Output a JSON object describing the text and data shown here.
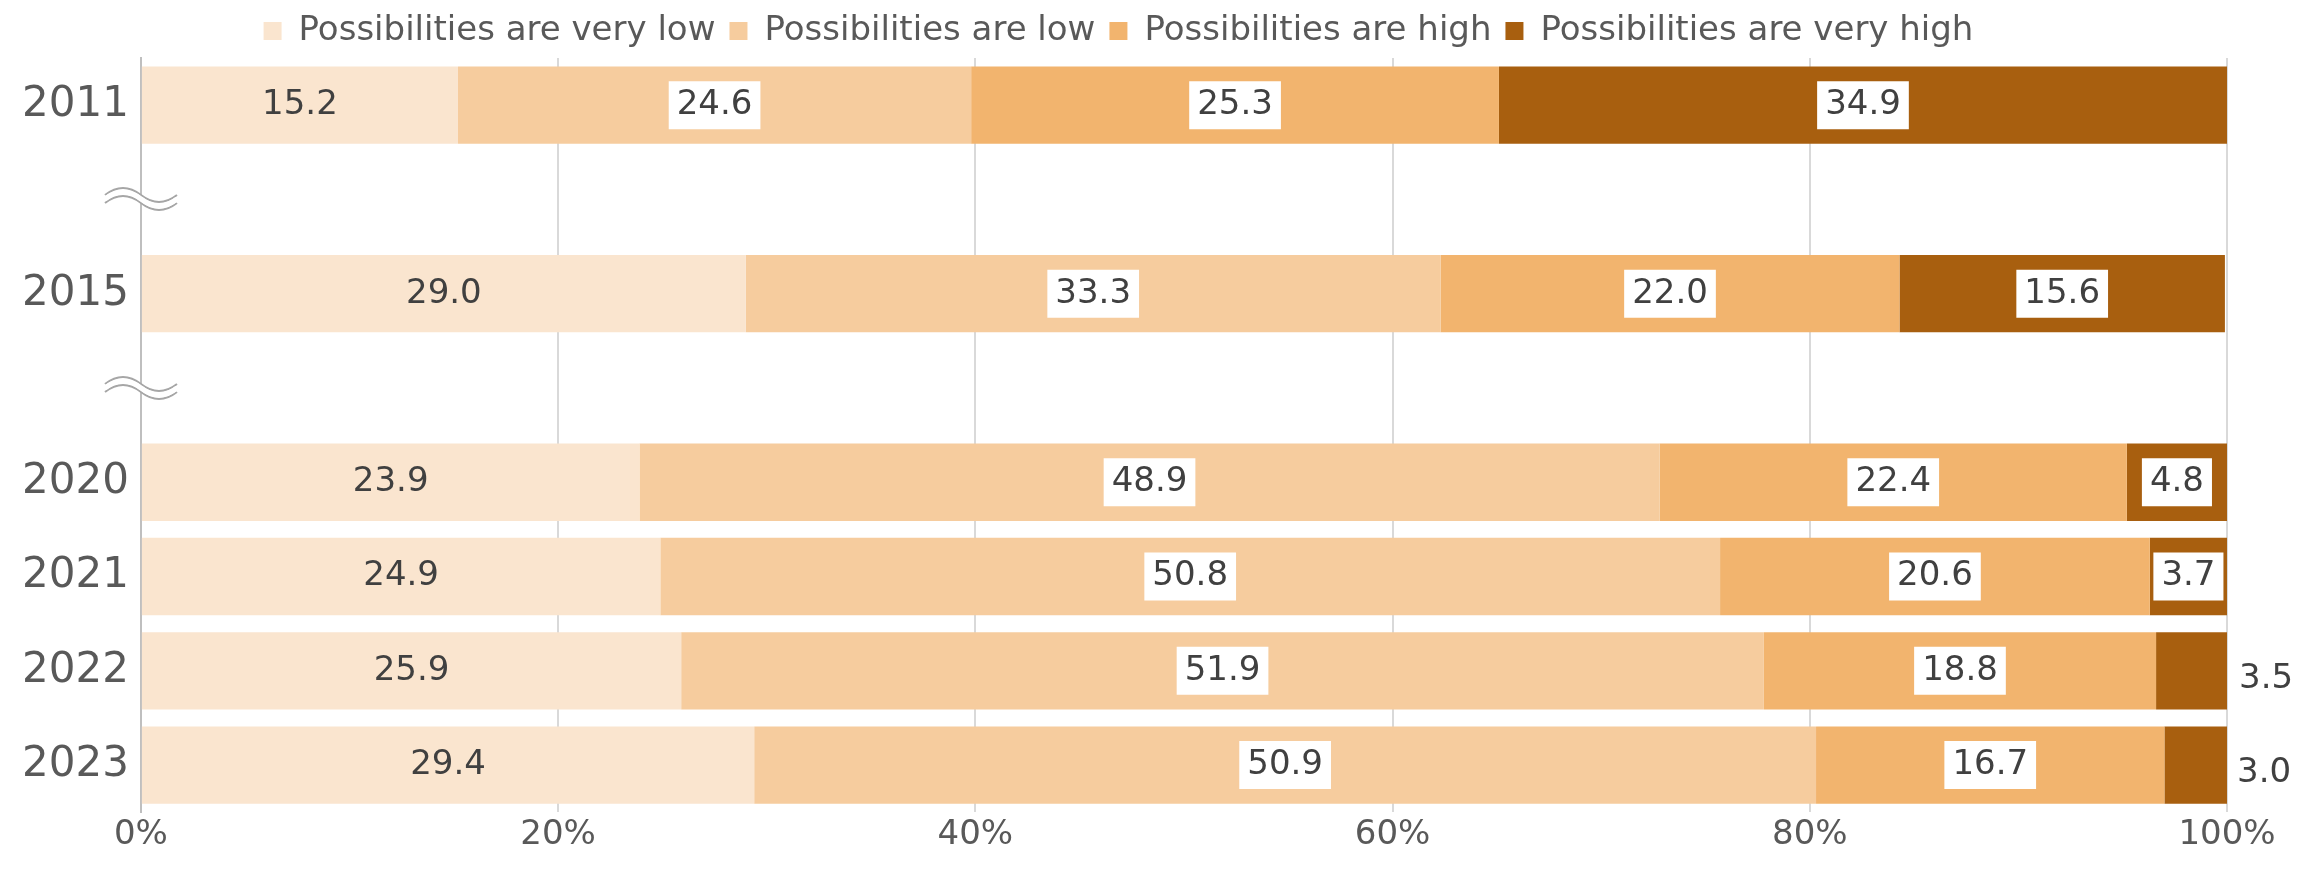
{
  "chart_data": {
    "type": "bar",
    "orientation": "horizontal",
    "stacked": true,
    "categories": [
      "2011",
      null,
      "2015",
      null,
      "2020",
      "2021",
      "2022",
      "2023"
    ],
    "series": [
      {
        "name": "Possibilities are very low",
        "color": "#fae5cf",
        "values": [
          15.2,
          null,
          29.0,
          null,
          23.9,
          24.9,
          25.9,
          29.4
        ],
        "value_labels": [
          "15.2",
          null,
          "29.0",
          null,
          "23.9",
          "24.9",
          "25.9",
          "29.4"
        ]
      },
      {
        "name": "Possibilities are low",
        "color": "#f6cc9e",
        "values": [
          24.6,
          null,
          33.3,
          null,
          48.9,
          50.8,
          51.9,
          50.9
        ],
        "value_labels": [
          "24.6",
          null,
          "33.3",
          null,
          "48.9",
          "50.8",
          "51.9",
          "50.9"
        ]
      },
      {
        "name": "Possibilities are high",
        "color": "#f2b46e",
        "values": [
          25.3,
          null,
          22.0,
          null,
          22.4,
          20.6,
          18.8,
          16.7
        ],
        "value_labels": [
          "25.3",
          null,
          "22.0",
          null,
          "22.4",
          "20.6",
          "18.8",
          "16.7"
        ]
      },
      {
        "name": "Possibilities are very high",
        "color": "#a85f0f",
        "values": [
          34.9,
          null,
          15.6,
          null,
          4.8,
          3.7,
          3.5,
          3.0
        ],
        "value_labels": [
          "34.9",
          null,
          "15.6",
          null,
          "4.8",
          "3.7",
          "3.5",
          "3.0"
        ]
      }
    ],
    "xlim": [
      0,
      100
    ],
    "xticks": [
      {
        "value": 0,
        "label": "0%"
      },
      {
        "value": 20,
        "label": "20%"
      },
      {
        "value": 40,
        "label": "40%"
      },
      {
        "value": 60,
        "label": "60%"
      },
      {
        "value": 80,
        "label": "80%"
      },
      {
        "value": 100,
        "label": "100%"
      }
    ],
    "grid": "x",
    "legend": "top"
  }
}
